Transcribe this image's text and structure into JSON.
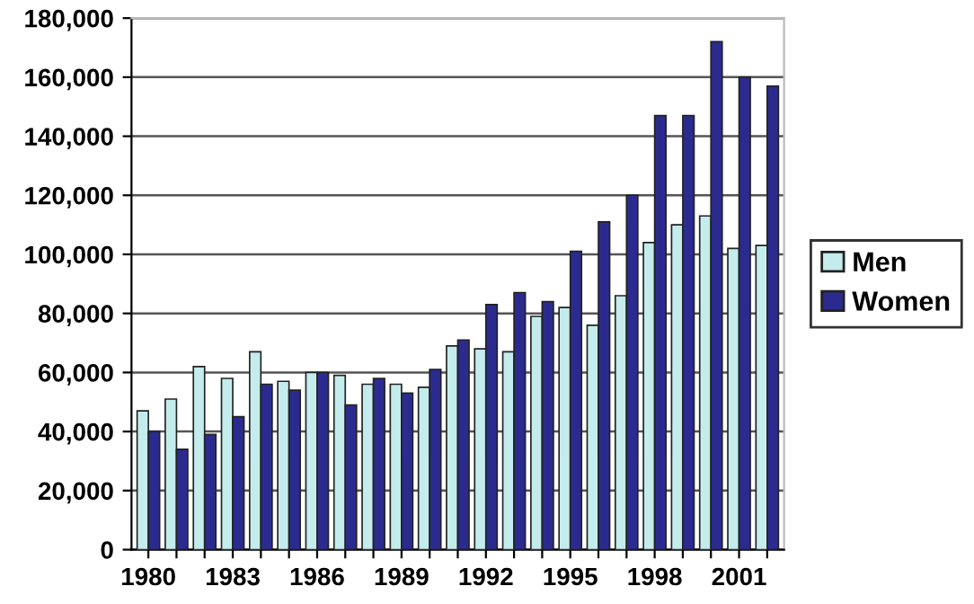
{
  "chart_data": {
    "type": "bar",
    "categories": [
      "1980",
      null,
      null,
      "1983",
      null,
      null,
      "1986",
      null,
      null,
      "1989",
      null,
      null,
      "1992",
      null,
      null,
      "1995",
      null,
      null,
      "1998",
      null,
      null,
      "2001",
      null
    ],
    "series": [
      {
        "name": "Men",
        "color": "#c4eced",
        "values": [
          47000,
          51000,
          62000,
          58000,
          67000,
          57000,
          60000,
          59000,
          56000,
          56000,
          55000,
          69000,
          68000,
          67000,
          79000,
          82000,
          76000,
          86000,
          104000,
          110000,
          113000,
          102000,
          103000
        ]
      },
      {
        "name": "Women",
        "color": "#2b2b8f",
        "values": [
          40000,
          34000,
          39000,
          45000,
          56000,
          54000,
          60000,
          49000,
          58000,
          53000,
          61000,
          71000,
          83000,
          87000,
          84000,
          101000,
          111000,
          120000,
          147000,
          147000,
          172000,
          160000,
          157000
        ]
      }
    ],
    "ylim": [
      0,
      180000
    ],
    "yticks": [
      {
        "value": 0,
        "label": "0"
      },
      {
        "value": 20000,
        "label": "20,000"
      },
      {
        "value": 40000,
        "label": "40,000"
      },
      {
        "value": 60000,
        "label": "60,000"
      },
      {
        "value": 80000,
        "label": "80,000"
      },
      {
        "value": 100000,
        "label": "100,000"
      },
      {
        "value": 120000,
        "label": "120,000"
      },
      {
        "value": 140000,
        "label": "140,000"
      },
      {
        "value": 160000,
        "label": "160,000"
      },
      {
        "value": 180000,
        "label": "180,000"
      }
    ],
    "grid": "y",
    "legend": "right"
  }
}
